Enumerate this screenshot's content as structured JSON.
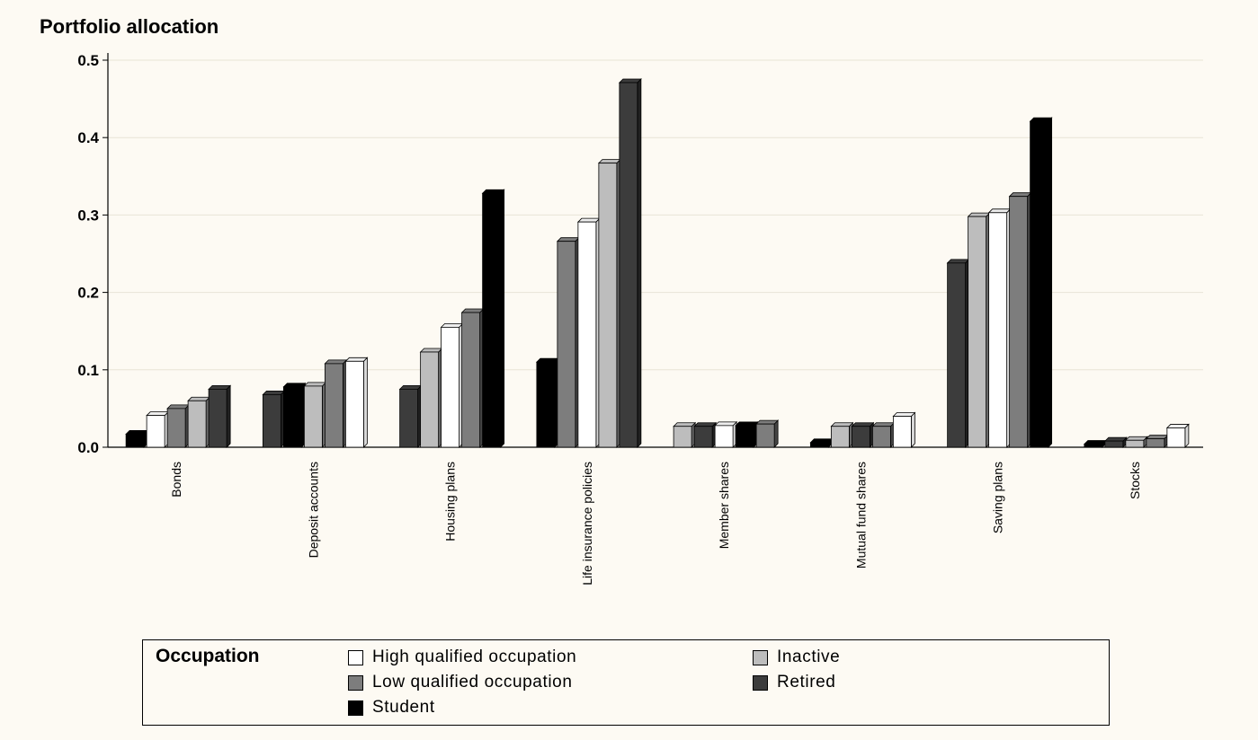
{
  "chart_data": {
    "type": "bar",
    "title": "Portfolio allocation",
    "xlabel": "",
    "ylabel": "",
    "ylim": [
      0,
      0.5
    ],
    "yticks": [
      "0.0",
      "0.1",
      "0.2",
      "0.3",
      "0.4",
      "0.5"
    ],
    "grid": true,
    "legend_position": "bottom",
    "legend_title": "Occupation",
    "categories": [
      "Bonds",
      "Deposit accounts",
      "Housing plans",
      "Life insurance policies",
      "Member shares",
      "Mutual fund shares",
      "Saving plans",
      "Stocks"
    ],
    "bars_per_category": [
      [
        {
          "series": "Student",
          "value": 0.017
        },
        {
          "series": "High qualified occupation",
          "value": 0.041
        },
        {
          "series": "Low qualified occupation",
          "value": 0.05
        },
        {
          "series": "Inactive",
          "value": 0.06
        },
        {
          "series": "Retired",
          "value": 0.075
        }
      ],
      [
        {
          "series": "Retired",
          "value": 0.068
        },
        {
          "series": "Student",
          "value": 0.078
        },
        {
          "series": "Inactive",
          "value": 0.079
        },
        {
          "series": "Low qualified occupation",
          "value": 0.108
        },
        {
          "series": "High qualified occupation",
          "value": 0.111
        }
      ],
      [
        {
          "series": "Retired",
          "value": 0.075
        },
        {
          "series": "Inactive",
          "value": 0.123
        },
        {
          "series": "High qualified occupation",
          "value": 0.155
        },
        {
          "series": "Low qualified occupation",
          "value": 0.174
        },
        {
          "series": "Student",
          "value": 0.328
        }
      ],
      [
        {
          "series": "Student",
          "value": 0.11
        },
        {
          "series": "Low qualified occupation",
          "value": 0.266
        },
        {
          "series": "High qualified occupation",
          "value": 0.291
        },
        {
          "series": "Inactive",
          "value": 0.367
        },
        {
          "series": "Retired",
          "value": 0.471
        }
      ],
      [
        {
          "series": "Inactive",
          "value": 0.027
        },
        {
          "series": "Retired",
          "value": 0.027
        },
        {
          "series": "High qualified occupation",
          "value": 0.028
        },
        {
          "series": "Student",
          "value": 0.028
        },
        {
          "series": "Low qualified occupation",
          "value": 0.03
        }
      ],
      [
        {
          "series": "Student",
          "value": 0.006
        },
        {
          "series": "Inactive",
          "value": 0.027
        },
        {
          "series": "Retired",
          "value": 0.027
        },
        {
          "series": "Low qualified occupation",
          "value": 0.027
        },
        {
          "series": "High qualified occupation",
          "value": 0.04
        }
      ],
      [
        {
          "series": "Retired",
          "value": 0.238
        },
        {
          "series": "Inactive",
          "value": 0.298
        },
        {
          "series": "High qualified occupation",
          "value": 0.303
        },
        {
          "series": "Low qualified occupation",
          "value": 0.324
        },
        {
          "series": "Student",
          "value": 0.421
        }
      ],
      [
        {
          "series": "Student",
          "value": 0.004
        },
        {
          "series": "Retired",
          "value": 0.008
        },
        {
          "series": "Inactive",
          "value": 0.009
        },
        {
          "series": "Low qualified occupation",
          "value": 0.011
        },
        {
          "series": "High qualified occupation",
          "value": 0.025
        }
      ]
    ],
    "series": [
      {
        "name": "High qualified occupation",
        "color": "#ffffff"
      },
      {
        "name": "Inactive",
        "color": "#bdbdbd"
      },
      {
        "name": "Low qualified occupation",
        "color": "#7d7d7d"
      },
      {
        "name": "Retired",
        "color": "#3c3c3c"
      },
      {
        "name": "Student",
        "color": "#000000"
      }
    ]
  }
}
